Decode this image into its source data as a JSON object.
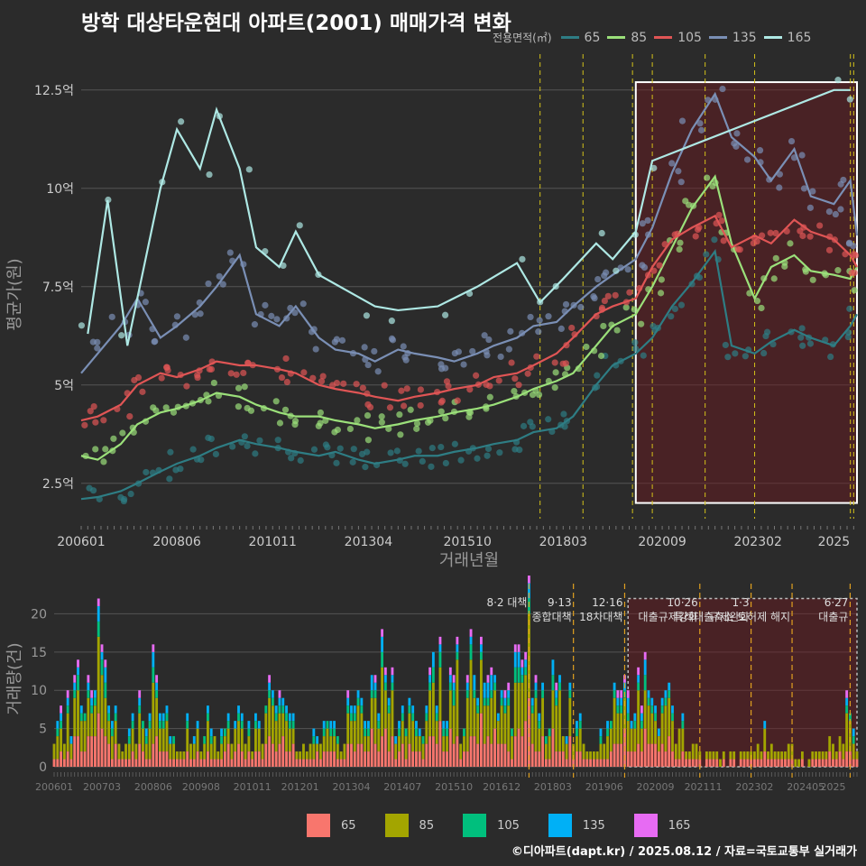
{
  "title": "방학 대상타운현대 아파트(2001) 매매가격 변화",
  "credit": "©디아파트(dapt.kr) / 2025.08.12 / 자료=국토교통부 실거래가",
  "legend_title": "전용면적(㎡)",
  "colors": {
    "line": {
      "65": "#2e7d84",
      "85": "#9be07a",
      "105": "#e05555",
      "135": "#7a8fb5",
      "165": "#aee8e4"
    },
    "bar": {
      "65": "#f8766d",
      "85": "#a3a500",
      "105": "#00bf7d",
      "135": "#00b0f6",
      "165": "#e76bf3"
    }
  },
  "chart_data": [
    {
      "type": "line",
      "xlabel": "거래년월",
      "ylabel": "평균가(원)",
      "x_ticks": [
        "200601",
        "200806",
        "201011",
        "201304",
        "201510",
        "201803",
        "202009",
        "202302",
        "2025"
      ],
      "y_ticks": [
        "2.5억",
        "5억",
        "7.5억",
        "10억",
        "12.5억"
      ],
      "y_tick_values": [
        2.5,
        5,
        7.5,
        10,
        12.5
      ],
      "ylim": [
        1.6,
        13.0
      ],
      "xlim": [
        "2006-01",
        "2025-08"
      ],
      "highlight_range": [
        "2020-01",
        "2025-08"
      ],
      "policy_dates": [
        "2017-08",
        "2018-09",
        "2019-12",
        "2020-06",
        "2021-10",
        "2023-01",
        "2025-06",
        "2025-07"
      ],
      "series": [
        {
          "name": "65",
          "x": [
            "2006-01",
            "2006-06",
            "2007-01",
            "2007-06",
            "2008-01",
            "2008-06",
            "2009-01",
            "2009-06",
            "2010-01",
            "2010-06",
            "2011-01",
            "2011-06",
            "2012-01",
            "2012-06",
            "2013-01",
            "2013-06",
            "2014-01",
            "2014-06",
            "2015-01",
            "2015-06",
            "2016-01",
            "2016-06",
            "2017-01",
            "2017-06",
            "2018-01",
            "2018-06",
            "2019-01",
            "2019-06",
            "2020-01",
            "2020-06",
            "2020-12",
            "2021-06",
            "2022-01",
            "2022-06",
            "2023-01",
            "2023-06",
            "2024-01",
            "2024-06",
            "2025-01",
            "2025-06",
            "2025-08"
          ],
          "values": [
            2.1,
            2.15,
            2.3,
            2.5,
            2.8,
            3.0,
            3.2,
            3.4,
            3.6,
            3.5,
            3.4,
            3.3,
            3.2,
            3.3,
            3.1,
            3.0,
            3.1,
            3.2,
            3.2,
            3.3,
            3.4,
            3.5,
            3.6,
            3.8,
            3.9,
            4.2,
            5.0,
            5.5,
            5.8,
            6.2,
            7.0,
            7.6,
            8.4,
            6.0,
            5.8,
            6.1,
            6.4,
            6.2,
            6.0,
            6.5,
            6.8
          ]
        },
        {
          "name": "85",
          "x": [
            "2006-01",
            "2006-06",
            "2007-01",
            "2007-06",
            "2008-01",
            "2008-06",
            "2009-01",
            "2009-06",
            "2010-01",
            "2010-06",
            "2011-01",
            "2011-06",
            "2012-01",
            "2012-06",
            "2013-01",
            "2013-06",
            "2014-01",
            "2014-06",
            "2015-01",
            "2015-06",
            "2016-01",
            "2016-06",
            "2017-01",
            "2017-06",
            "2018-01",
            "2018-06",
            "2019-01",
            "2019-06",
            "2020-01",
            "2020-06",
            "2020-12",
            "2021-06",
            "2022-01",
            "2022-06",
            "2023-01",
            "2023-06",
            "2024-01",
            "2024-06",
            "2025-01",
            "2025-06",
            "2025-08"
          ],
          "values": [
            3.2,
            3.1,
            3.5,
            4.0,
            4.3,
            4.4,
            4.6,
            4.8,
            4.7,
            4.5,
            4.3,
            4.2,
            4.2,
            4.1,
            4.0,
            3.9,
            4.0,
            4.1,
            4.2,
            4.3,
            4.4,
            4.5,
            4.7,
            4.9,
            5.1,
            5.3,
            6.0,
            6.5,
            6.8,
            7.5,
            8.5,
            9.5,
            10.3,
            8.6,
            7.2,
            8.0,
            8.3,
            7.9,
            7.8,
            7.7,
            8.0
          ]
        },
        {
          "name": "105",
          "x": [
            "2006-01",
            "2006-06",
            "2007-01",
            "2007-06",
            "2008-01",
            "2008-06",
            "2009-01",
            "2009-06",
            "2010-01",
            "2010-06",
            "2011-01",
            "2011-06",
            "2012-01",
            "2012-06",
            "2013-01",
            "2013-06",
            "2014-01",
            "2014-06",
            "2015-01",
            "2015-06",
            "2016-01",
            "2016-06",
            "2017-01",
            "2017-06",
            "2018-01",
            "2018-06",
            "2019-01",
            "2019-06",
            "2020-01",
            "2020-06",
            "2020-12",
            "2021-06",
            "2022-01",
            "2022-06",
            "2023-01",
            "2023-06",
            "2024-01",
            "2024-06",
            "2025-01",
            "2025-06",
            "2025-08"
          ],
          "values": [
            4.1,
            4.2,
            4.5,
            5.0,
            5.3,
            5.2,
            5.4,
            5.6,
            5.5,
            5.5,
            5.4,
            5.3,
            5.0,
            4.9,
            4.8,
            4.7,
            4.6,
            4.7,
            4.8,
            4.9,
            5.0,
            5.2,
            5.3,
            5.5,
            5.8,
            6.2,
            6.8,
            7.0,
            7.2,
            8.0,
            8.7,
            9.0,
            9.3,
            8.5,
            8.8,
            8.6,
            9.2,
            8.9,
            8.7,
            8.3,
            8.0
          ]
        },
        {
          "name": "135",
          "x": [
            "2006-01",
            "2006-06",
            "2007-01",
            "2007-06",
            "2008-01",
            "2008-06",
            "2009-01",
            "2009-06",
            "2010-01",
            "2010-06",
            "2011-01",
            "2011-06",
            "2012-01",
            "2012-06",
            "2013-01",
            "2013-06",
            "2014-01",
            "2014-06",
            "2015-01",
            "2015-06",
            "2016-01",
            "2016-06",
            "2017-01",
            "2017-06",
            "2018-01",
            "2018-06",
            "2019-01",
            "2019-06",
            "2020-01",
            "2020-06",
            "2020-12",
            "2021-06",
            "2022-01",
            "2022-06",
            "2023-01",
            "2023-06",
            "2024-01",
            "2024-06",
            "2025-01",
            "2025-06",
            "2025-08"
          ],
          "values": [
            5.3,
            5.8,
            6.5,
            7.2,
            6.2,
            6.5,
            7.0,
            7.5,
            8.3,
            6.8,
            6.5,
            7.0,
            6.2,
            5.9,
            5.8,
            5.6,
            5.9,
            5.8,
            5.7,
            5.6,
            5.8,
            6.0,
            6.2,
            6.5,
            6.6,
            7.0,
            7.5,
            7.8,
            8.2,
            9.0,
            10.4,
            11.5,
            12.4,
            11.3,
            10.8,
            10.2,
            11.0,
            9.8,
            9.6,
            10.2,
            8.8
          ]
        },
        {
          "name": "165",
          "x": [
            "2006-03",
            "2006-09",
            "2007-03",
            "2008-01",
            "2008-06",
            "2009-01",
            "2009-06",
            "2010-01",
            "2010-06",
            "2011-01",
            "2011-06",
            "2012-01",
            "2013-06",
            "2014-01",
            "2015-01",
            "2016-01",
            "2017-01",
            "2017-08",
            "2018-03",
            "2019-01",
            "2019-06",
            "2020-01",
            "2020-06",
            "2025-01",
            "2025-06"
          ],
          "values": [
            6.3,
            9.7,
            6.0,
            10.0,
            11.5,
            10.5,
            12.0,
            10.5,
            8.5,
            8.0,
            8.9,
            7.8,
            7.0,
            6.9,
            7.0,
            7.5,
            8.1,
            7.1,
            7.7,
            8.6,
            8.2,
            8.9,
            10.7,
            12.5,
            12.5
          ]
        }
      ]
    },
    {
      "type": "bar",
      "stacked": true,
      "ylabel": "거래량(건)",
      "y_ticks": [
        "0",
        "5",
        "10",
        "15",
        "20"
      ],
      "y_tick_values": [
        0,
        5,
        10,
        15,
        20
      ],
      "ylim": [
        0,
        23
      ],
      "x_ticks": [
        "200601",
        "200703",
        "200806",
        "200908",
        "201011",
        "201201",
        "201304",
        "201407",
        "201510",
        "201612",
        "201803",
        "201906",
        "202009",
        "202111",
        "202302",
        "202405",
        "2025"
      ],
      "annotations": [
        {
          "date": "2017-08",
          "label": "8·2 대책",
          "line2": ""
        },
        {
          "date": "2018-09",
          "label": "9·13",
          "line2": "종합대책"
        },
        {
          "date": "2019-12",
          "label": "12·16",
          "line2": "18차대책"
        },
        {
          "date": "2021-10",
          "label": "10·26",
          "line2": "대출규제강화"
        },
        {
          "date": "2023-01",
          "label": "1·3",
          "line2": "규제완화"
        },
        {
          "date": "2025-06",
          "label": "6·27",
          "line2": "대출규"
        },
        {
          "date": "2024-01",
          "label": "",
          "line2": "특례대출축소 토허제 해지"
        }
      ],
      "categories_note": "monthly volumes 2006-01 to 2025-08 by area",
      "series": [
        {
          "name": "65"
        },
        {
          "name": "85"
        },
        {
          "name": "105"
        },
        {
          "name": "135"
        },
        {
          "name": "165"
        }
      ],
      "volume_profile": [
        [
          "2006-01",
          4
        ],
        [
          "2006-06",
          10
        ],
        [
          "2007-01",
          16
        ],
        [
          "2007-03",
          22
        ],
        [
          "2007-06",
          8
        ],
        [
          "2008-01",
          6
        ],
        [
          "2008-06",
          15
        ],
        [
          "2009-01",
          3
        ],
        [
          "2009-06",
          6
        ],
        [
          "2010-01",
          5
        ],
        [
          "2010-06",
          9
        ],
        [
          "2011-01",
          4
        ],
        [
          "2011-06",
          12
        ],
        [
          "2012-01",
          3
        ],
        [
          "2012-06",
          5
        ],
        [
          "2013-01",
          6
        ],
        [
          "2013-06",
          9
        ],
        [
          "2014-01",
          12
        ],
        [
          "2014-06",
          8
        ],
        [
          "2015-01",
          10
        ],
        [
          "2015-06",
          14
        ],
        [
          "2016-01",
          12
        ],
        [
          "2016-06",
          15
        ],
        [
          "2016-12",
          11
        ],
        [
          "2017-06",
          14
        ],
        [
          "2017-08",
          18
        ],
        [
          "2018-01",
          12
        ],
        [
          "2018-06",
          10
        ],
        [
          "2019-01",
          4
        ],
        [
          "2019-06",
          6
        ],
        [
          "2019-12",
          11
        ],
        [
          "2020-06",
          13
        ],
        [
          "2020-12",
          9
        ],
        [
          "2021-06",
          5
        ],
        [
          "2021-10",
          3
        ],
        [
          "2022-06",
          2
        ],
        [
          "2023-01",
          3
        ],
        [
          "2023-06",
          4
        ],
        [
          "2024-01",
          3
        ],
        [
          "2024-06",
          2
        ],
        [
          "2025-01",
          4
        ],
        [
          "2025-06",
          9
        ],
        [
          "2025-08",
          2
        ]
      ]
    }
  ]
}
